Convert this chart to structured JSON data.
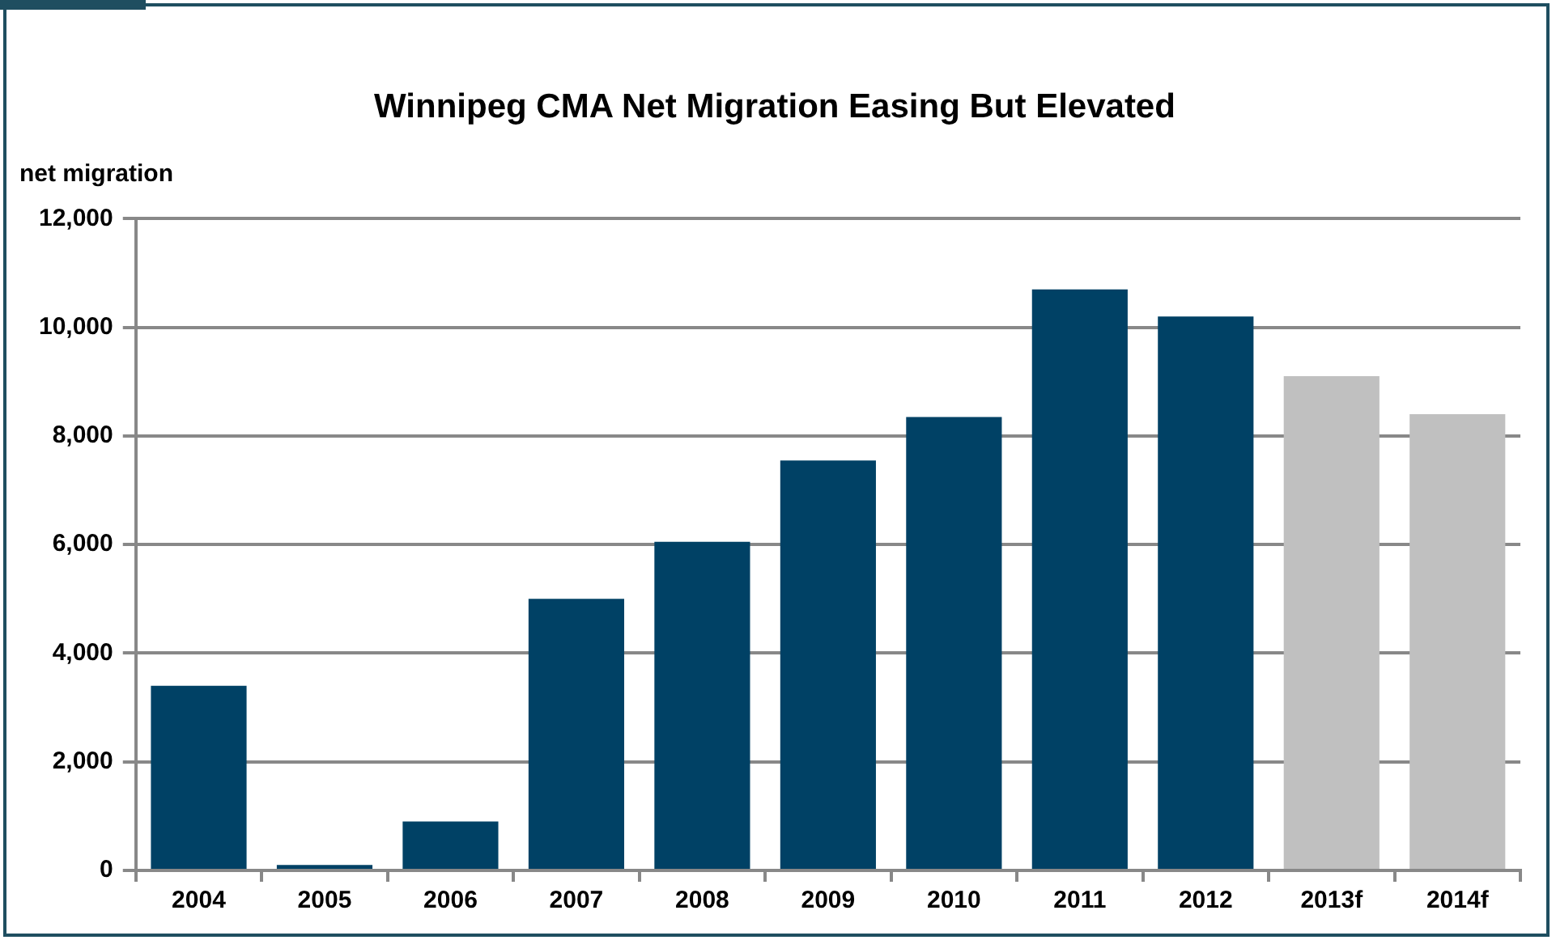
{
  "chart_data": {
    "type": "bar",
    "title": "Winnipeg CMA Net Migration Easing But Elevated",
    "ylabel": "net migration",
    "categories": [
      "2004",
      "2005",
      "2006",
      "2007",
      "2008",
      "2009",
      "2010",
      "2011",
      "2012",
      "2013f",
      "2014f"
    ],
    "values": [
      3400,
      100,
      900,
      5000,
      6050,
      7550,
      8350,
      10700,
      10200,
      9100,
      8400
    ],
    "colors": [
      "#004165",
      "#004165",
      "#004165",
      "#004165",
      "#004165",
      "#004165",
      "#004165",
      "#004165",
      "#004165",
      "#c0c0c0",
      "#c0c0c0"
    ],
    "ylim": [
      0,
      12000
    ],
    "yticks": [
      {
        "value": 0,
        "label": "0"
      },
      {
        "value": 2000,
        "label": "2,000"
      },
      {
        "value": 4000,
        "label": "4,000"
      },
      {
        "value": 6000,
        "label": "6,000"
      },
      {
        "value": 8000,
        "label": "8,000"
      },
      {
        "value": 10000,
        "label": "10,000"
      },
      {
        "value": 12000,
        "label": "12,000"
      }
    ],
    "grid": "y",
    "legend": false
  }
}
